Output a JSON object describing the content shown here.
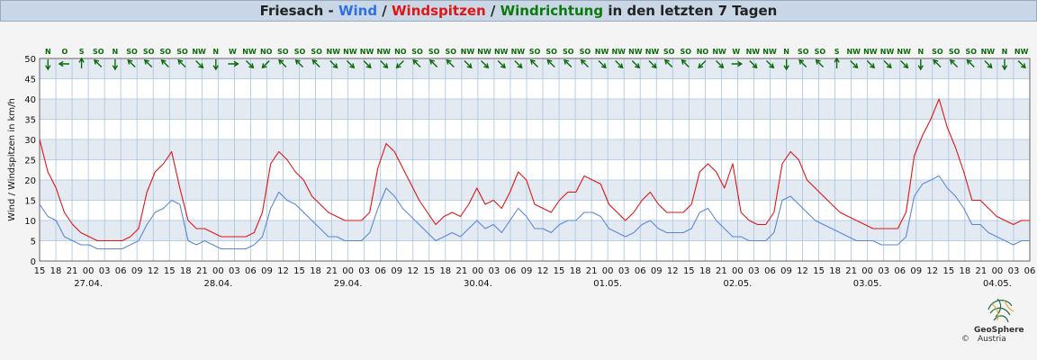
{
  "title": {
    "station": "Friesach",
    "sep1": " - ",
    "wind": "Wind",
    "sep2": " / ",
    "gusts": "Windspitzen",
    "sep3": " / ",
    "direction": "Windrichtung",
    "suffix": " in den letzten 7 Tagen"
  },
  "colors": {
    "wind": "#5b87d8",
    "gusts": "#e01515",
    "direction": "#0a7a0a",
    "title_wind": "#2f6fe0",
    "title_gusts": "#e01515",
    "title_direction": "#0a7a0a"
  },
  "logo": {
    "name": "GeoSphere",
    "sub": "Austria",
    "copyright": "©"
  },
  "chart_data": {
    "type": "line",
    "ylabel": "Wind / Windspitzen in km/h",
    "ylim": [
      0,
      50
    ],
    "yticks": [
      0,
      5,
      10,
      15,
      20,
      25,
      30,
      35,
      40,
      45,
      50
    ],
    "grid": true,
    "x_hour_start": 15,
    "x_hours_total": 159,
    "hour_tick_labels": [
      "15",
      "18",
      "21",
      "00",
      "03",
      "06",
      "09",
      "12",
      "15",
      "18",
      "21",
      "00",
      "03",
      "06",
      "09",
      "12",
      "15",
      "18",
      "21",
      "00",
      "03",
      "06",
      "09",
      "12",
      "15",
      "18",
      "21",
      "00",
      "03",
      "06",
      "09",
      "12",
      "15",
      "18",
      "21",
      "00",
      "03",
      "06",
      "09",
      "12",
      "15",
      "18",
      "21",
      "00",
      "03",
      "06",
      "09",
      "12",
      "15",
      "18",
      "21",
      "00",
      "03",
      "06",
      "09",
      "12",
      "15",
      "18",
      "21",
      "00",
      "03",
      "06"
    ],
    "date_labels": [
      {
        "label": "27.04.",
        "tick_index": 3
      },
      {
        "label": "28.04.",
        "tick_index": 11
      },
      {
        "label": "29.04.",
        "tick_index": 19
      },
      {
        "label": "30.04.",
        "tick_index": 27
      },
      {
        "label": "01.05.",
        "tick_index": 35
      },
      {
        "label": "02.05.",
        "tick_index": 43
      },
      {
        "label": "03.05.",
        "tick_index": 51
      },
      {
        "label": "04.05.",
        "tick_index": 59
      }
    ],
    "wind_directions": [
      "N",
      "O",
      "S",
      "SO",
      "N",
      "SO",
      "SO",
      "SO",
      "SO",
      "NW",
      "N",
      "W",
      "NW",
      "NO",
      "SO",
      "SO",
      "SO",
      "NW",
      "NW",
      "NW",
      "NW",
      "NO",
      "SO",
      "SO",
      "SO",
      "NW",
      "NW",
      "NW",
      "NW",
      "SO",
      "SO",
      "SO",
      "SO",
      "NW",
      "NW",
      "NW",
      "NW",
      "SO",
      "SO",
      "NO",
      "NW",
      "W",
      "NW",
      "NW",
      "N",
      "SO",
      "SO",
      "S",
      "NW",
      "NW",
      "NW",
      "NW",
      "N",
      "SO",
      "SO",
      "SO",
      "NW",
      "N",
      "NW"
    ],
    "series": [
      {
        "name": "Wind",
        "color": "#5b87d8",
        "values": [
          14,
          11,
          10,
          6,
          5,
          4,
          4,
          3,
          3,
          3,
          3,
          4,
          5,
          9,
          12,
          13,
          15,
          14,
          5,
          4,
          5,
          4,
          3,
          3,
          3,
          3,
          4,
          6,
          13,
          17,
          15,
          14,
          12,
          10,
          8,
          6,
          6,
          5,
          5,
          5,
          7,
          13,
          18,
          16,
          13,
          11,
          9,
          7,
          5,
          6,
          7,
          6,
          8,
          10,
          8,
          9,
          7,
          10,
          13,
          11,
          8,
          8,
          7,
          9,
          10,
          10,
          12,
          12,
          11,
          8,
          7,
          6,
          7,
          9,
          10,
          8,
          7,
          7,
          7,
          8,
          12,
          13,
          10,
          8,
          6,
          6,
          5,
          5,
          5,
          7,
          15,
          16,
          14,
          12,
          10,
          9,
          8,
          7,
          6,
          5,
          5,
          5,
          4,
          4,
          4,
          6,
          16,
          19,
          20,
          21,
          18,
          16,
          13,
          9,
          9,
          7,
          6,
          5,
          4,
          5,
          5
        ]
      },
      {
        "name": "Windspitzen",
        "color": "#e01515",
        "values": [
          30,
          22,
          18,
          12,
          9,
          7,
          6,
          5,
          5,
          5,
          5,
          6,
          8,
          17,
          22,
          24,
          27,
          18,
          10,
          8,
          8,
          7,
          6,
          6,
          6,
          6,
          7,
          12,
          24,
          27,
          25,
          22,
          20,
          16,
          14,
          12,
          11,
          10,
          10,
          10,
          12,
          23,
          29,
          27,
          23,
          19,
          15,
          12,
          9,
          11,
          12,
          11,
          14,
          18,
          14,
          15,
          13,
          17,
          22,
          20,
          14,
          13,
          12,
          15,
          17,
          17,
          21,
          20,
          19,
          14,
          12,
          10,
          12,
          15,
          17,
          14,
          12,
          12,
          12,
          14,
          22,
          24,
          22,
          18,
          24,
          12,
          10,
          9,
          9,
          12,
          24,
          27,
          25,
          20,
          18,
          16,
          14,
          12,
          11,
          10,
          9,
          8,
          8,
          8,
          8,
          12,
          26,
          31,
          35,
          40,
          33,
          28,
          22,
          15,
          15,
          13,
          11,
          10,
          9,
          10,
          10
        ]
      }
    ]
  }
}
